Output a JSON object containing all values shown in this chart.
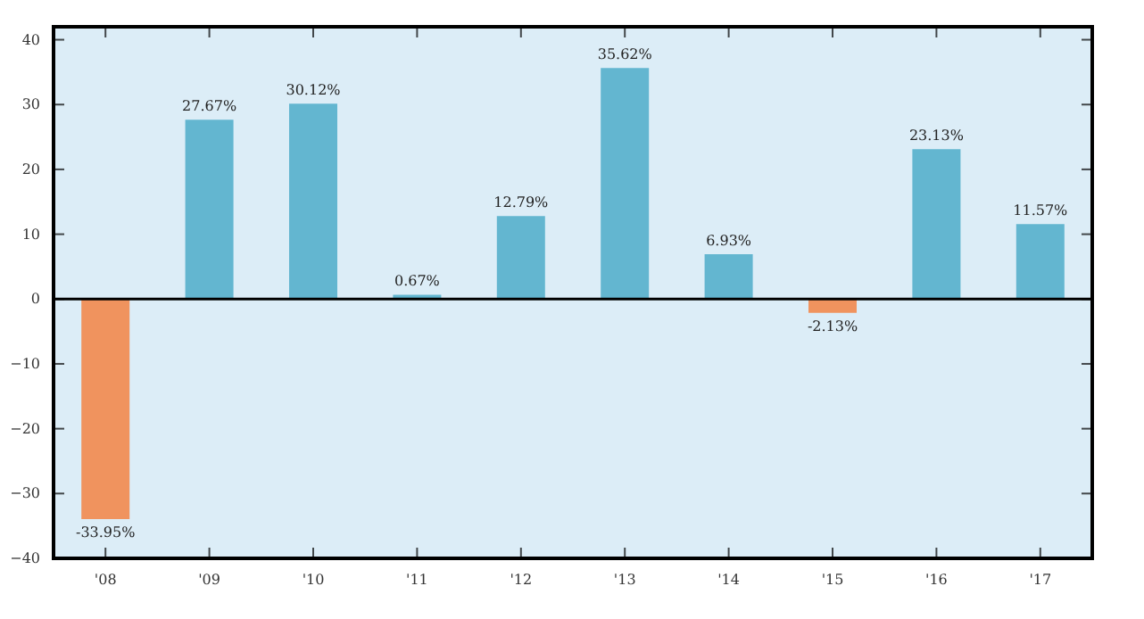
{
  "chart_data": {
    "type": "bar",
    "categories": [
      "'08",
      "'09",
      "'10",
      "'11",
      "'12",
      "'13",
      "'14",
      "'15",
      "'16",
      "'17"
    ],
    "values": [
      -33.95,
      27.67,
      30.12,
      0.67,
      12.79,
      35.62,
      6.93,
      -2.13,
      23.13,
      11.57
    ],
    "colors": [
      "#f0935e",
      "#63b6d0",
      "#63b6d0",
      "#63b6d0",
      "#63b6d0",
      "#63b6d0",
      "#63b6d0",
      "#f0935e",
      "#63b6d0",
      "#63b6d0"
    ],
    "value_labels": [
      "-33.95%",
      "27.67%",
      "30.12%",
      "0.67%",
      "12.79%",
      "35.62%",
      "6.93%",
      "-2.13%",
      "23.13%",
      "11.57%"
    ],
    "ylim": [
      -40,
      42
    ],
    "yticks": [
      -40,
      -30,
      -20,
      -10,
      0,
      10,
      20,
      30,
      40
    ],
    "ref_lines": [
      {
        "axis": "y",
        "value": 0,
        "color": "#000000"
      }
    ],
    "grid": false
  }
}
